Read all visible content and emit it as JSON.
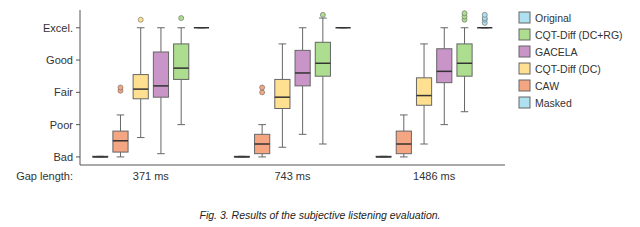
{
  "chart_data": {
    "type": "box",
    "categories": [
      "371 ms",
      "743 ms",
      "1486 ms"
    ],
    "xlabel": "Gap length:",
    "caption": "Fig. 3. Results of the subjective listening evaluation.",
    "ylim": [
      0.75,
      5.55
    ],
    "yticks": [
      {
        "value": 1,
        "label": "Bad"
      },
      {
        "value": 2,
        "label": "Poor"
      },
      {
        "value": 3,
        "label": "Fair"
      },
      {
        "value": 4,
        "label": "Good"
      },
      {
        "value": 5,
        "label": "Excel."
      }
    ],
    "grid": false,
    "legend": "right",
    "series": [
      {
        "name": "Masked",
        "color": "#AEE0F0",
        "values": [
          {
            "whislo": 1.0,
            "q1": 1.0,
            "med": 1.0,
            "q3": 1.02,
            "whishi": 1.02,
            "fliers": []
          },
          {
            "whislo": 1.0,
            "q1": 1.0,
            "med": 1.0,
            "q3": 1.02,
            "whishi": 1.02,
            "fliers": []
          },
          {
            "whislo": 1.0,
            "q1": 1.0,
            "med": 1.0,
            "q3": 1.02,
            "whishi": 1.02,
            "fliers": []
          }
        ]
      },
      {
        "name": "CAW",
        "color": "#F4A582",
        "values": [
          {
            "whislo": 1.0,
            "q1": 1.15,
            "med": 1.5,
            "q3": 1.8,
            "whishi": 2.3,
            "fliers": [
              3.05,
              3.15
            ]
          },
          {
            "whislo": 1.0,
            "q1": 1.1,
            "med": 1.4,
            "q3": 1.7,
            "whishi": 2.0,
            "fliers": [
              3.0,
              3.15
            ]
          },
          {
            "whislo": 1.0,
            "q1": 1.1,
            "med": 1.4,
            "q3": 1.8,
            "whishi": 2.3,
            "fliers": []
          }
        ]
      },
      {
        "name": "CQT-Diff (DC)",
        "color": "#FEE090",
        "values": [
          {
            "whislo": 1.6,
            "q1": 2.8,
            "med": 3.1,
            "q3": 3.55,
            "whishi": 5.0,
            "fliers": [
              5.25
            ]
          },
          {
            "whislo": 1.3,
            "q1": 2.5,
            "med": 2.85,
            "q3": 3.4,
            "whishi": 4.5,
            "fliers": []
          },
          {
            "whislo": 1.4,
            "q1": 2.6,
            "med": 2.9,
            "q3": 3.45,
            "whishi": 4.5,
            "fliers": []
          }
        ]
      },
      {
        "name": "GACELA",
        "color": "#C994C7",
        "values": [
          {
            "whislo": 1.1,
            "q1": 2.85,
            "med": 3.2,
            "q3": 4.25,
            "whishi": 5.0,
            "fliers": []
          },
          {
            "whislo": 1.7,
            "q1": 3.2,
            "med": 3.6,
            "q3": 4.3,
            "whishi": 5.0,
            "fliers": []
          },
          {
            "whislo": 2.0,
            "q1": 3.3,
            "med": 3.65,
            "q3": 4.35,
            "whishi": 5.0,
            "fliers": []
          }
        ]
      },
      {
        "name": "CQT-Diff (DC+RG)",
        "color": "#ADDD8E",
        "values": [
          {
            "whislo": 2.0,
            "q1": 3.4,
            "med": 3.75,
            "q3": 4.5,
            "whishi": 5.0,
            "fliers": [
              5.3
            ]
          },
          {
            "whislo": 1.4,
            "q1": 3.5,
            "med": 3.9,
            "q3": 4.55,
            "whishi": 5.3,
            "fliers": [
              5.4
            ]
          },
          {
            "whislo": 2.4,
            "q1": 3.5,
            "med": 3.9,
            "q3": 4.5,
            "whishi": 5.0,
            "fliers": [
              5.25,
              5.35,
              5.45
            ]
          }
        ]
      },
      {
        "name": "Original",
        "color": "#AEE0F0",
        "values": [
          {
            "whislo": 5.0,
            "q1": 5.0,
            "med": 5.0,
            "q3": 5.0,
            "whishi": 5.0,
            "fliers": []
          },
          {
            "whislo": 5.0,
            "q1": 5.0,
            "med": 5.0,
            "q3": 5.0,
            "whishi": 5.0,
            "fliers": []
          },
          {
            "whislo": 5.0,
            "q1": 5.0,
            "med": 5.0,
            "q3": 5.0,
            "whishi": 5.0,
            "fliers": [
              5.15,
              5.25,
              5.3,
              5.4
            ]
          }
        ]
      }
    ]
  }
}
